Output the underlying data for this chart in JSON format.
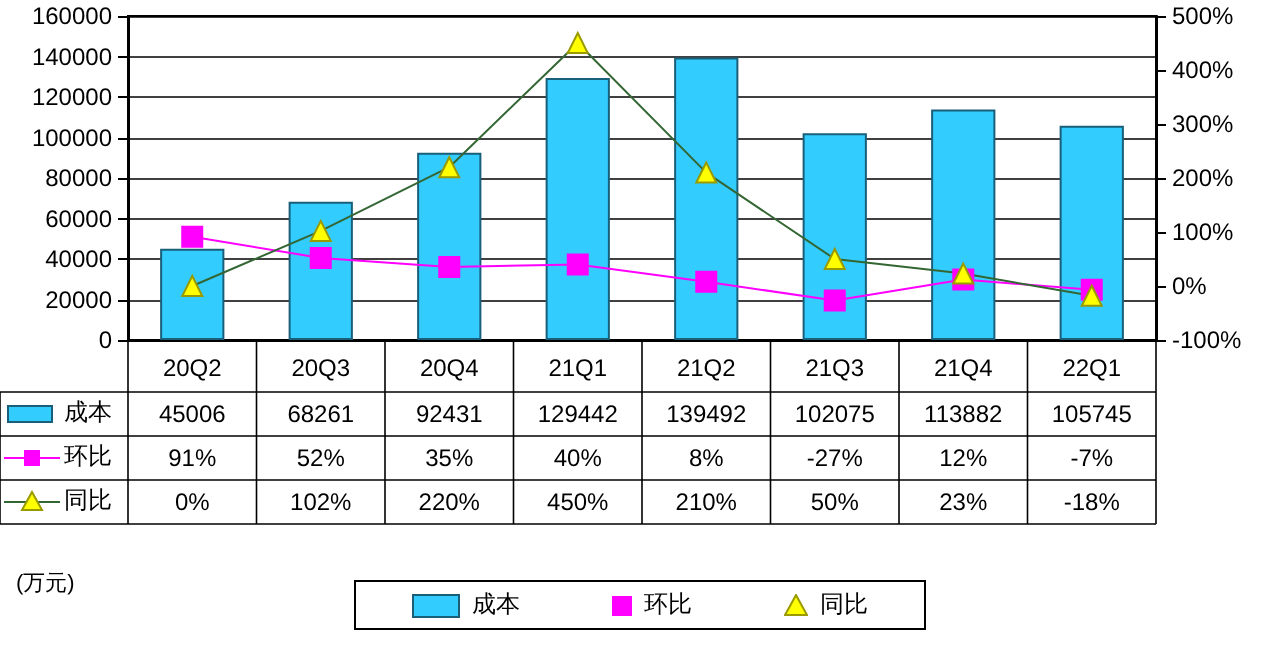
{
  "chart_data": {
    "type": "bar",
    "categories": [
      "20Q2",
      "20Q3",
      "20Q4",
      "21Q1",
      "21Q2",
      "21Q3",
      "21Q4",
      "22Q1"
    ],
    "series": [
      {
        "name": "成本",
        "color": "#33ccff",
        "values": [
          45006,
          68261,
          92431,
          129442,
          139492,
          102075,
          113882,
          105745
        ],
        "value_labels": [
          "45006",
          "68261",
          "92431",
          "129442",
          "139492",
          "102075",
          "113882",
          "105745"
        ]
      },
      {
        "name": "环比",
        "type": "line",
        "axis": "y2",
        "color": "#ff00ff",
        "marker": "square",
        "values": [
          91,
          52,
          35,
          40,
          8,
          -27,
          12,
          -7
        ],
        "value_labels": [
          "91%",
          "52%",
          "35%",
          "40%",
          "8%",
          "-27%",
          "12%",
          "-7%"
        ]
      },
      {
        "name": "同比",
        "type": "line",
        "axis": "y2",
        "color": "#ffff00",
        "marker": "triangle",
        "values": [
          0,
          102,
          220,
          450,
          210,
          50,
          23,
          -18
        ],
        "value_labels": [
          "0%",
          "102%",
          "220%",
          "450%",
          "210%",
          "50%",
          "23%",
          "-18%"
        ]
      }
    ],
    "ylim": [
      0,
      160000
    ],
    "yticks": [
      0,
      20000,
      40000,
      60000,
      80000,
      100000,
      120000,
      140000,
      160000
    ],
    "y2lim": [
      -100,
      500
    ],
    "y2ticks": [
      {
        "value": -100,
        "label": "-100%"
      },
      {
        "value": 0,
        "label": "0%"
      },
      {
        "value": 100,
        "label": "100%"
      },
      {
        "value": 200,
        "label": "200%"
      },
      {
        "value": 300,
        "label": "300%"
      },
      {
        "value": 400,
        "label": "400%"
      },
      {
        "value": 500,
        "label": "500%"
      }
    ],
    "grid": "y",
    "legend": "bottom",
    "annotations": [
      "(万元)"
    ]
  }
}
